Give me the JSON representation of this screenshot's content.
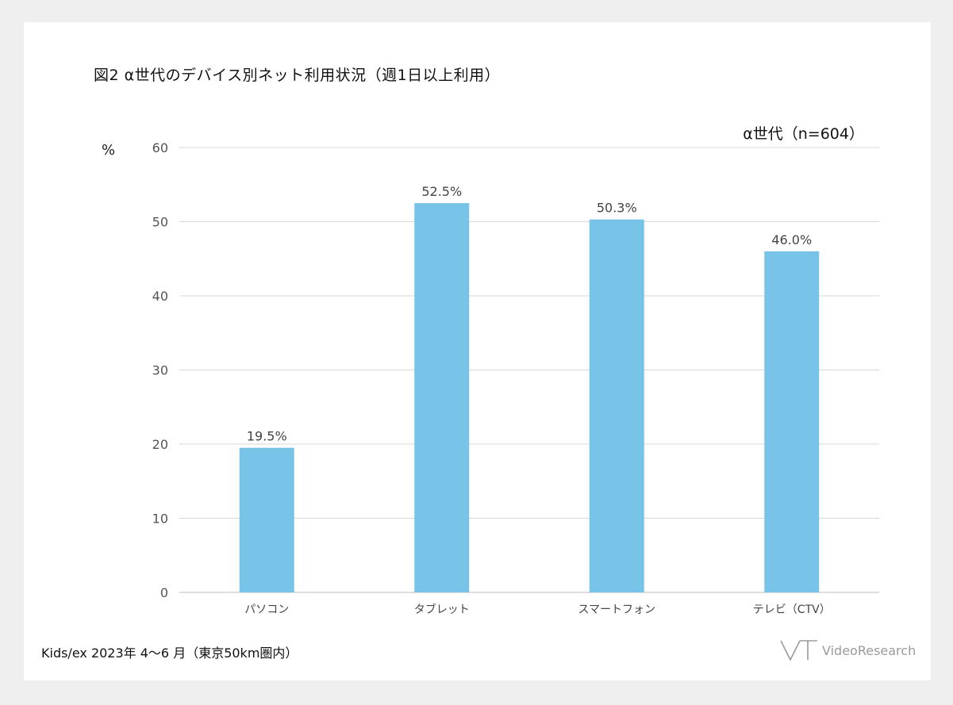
{
  "title": "図2  α世代のデバイス別ネット利用状況（週1日以上利用）",
  "subtitle": "α世代（n=604）",
  "unit": "%",
  "source": "Kids/ex 2023年 4～6 月（東京50km圏内）",
  "logo": {
    "text": "VideoResearch"
  },
  "colors": {
    "bar": "#78c3e8",
    "grid": "#d9d9d9",
    "background": "#efefef",
    "card": "#ffffff"
  },
  "chart_data": {
    "type": "bar",
    "categories": [
      "パソコン",
      "タブレット",
      "スマートフォン",
      "テレビ（CTV）"
    ],
    "values": [
      19.5,
      52.5,
      50.3,
      46.0
    ],
    "data_labels": [
      "19.5%",
      "52.5%",
      "50.3%",
      "46.0%"
    ],
    "yticks": [
      "0",
      "10",
      "20",
      "30",
      "40",
      "50",
      "60"
    ],
    "ylim": [
      0,
      60
    ],
    "grid": true
  }
}
